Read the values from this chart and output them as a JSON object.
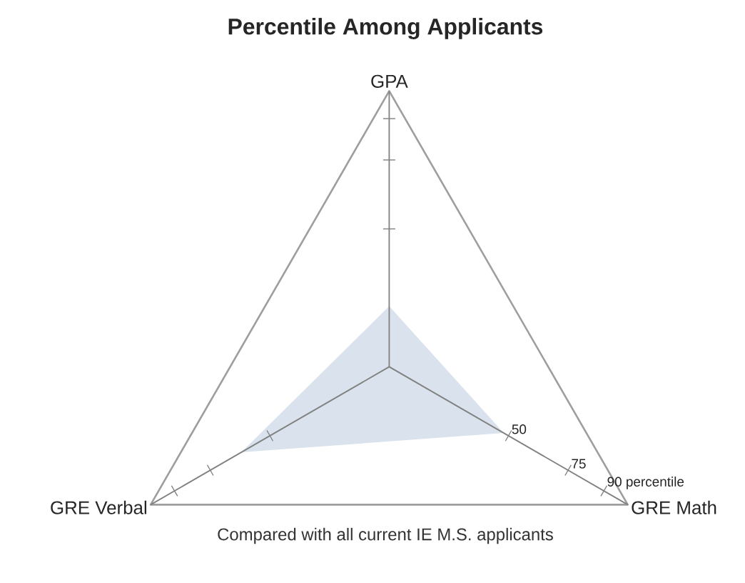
{
  "chart_data": {
    "type": "radar",
    "title": "Percentile Among Applicants",
    "categories": [
      "GPA",
      "GRE Math",
      "GRE Verbal"
    ],
    "series": [
      {
        "color": "#d9e2ed",
        "values": [
          22,
          48,
          62
        ]
      }
    ],
    "ylim": [
      0,
      100
    ],
    "yticks": [
      50,
      75,
      {
        "value": 90,
        "label": "90 percentile"
      }
    ],
    "annotations": [
      "Compared with all current IE M.S. applicants"
    ]
  }
}
